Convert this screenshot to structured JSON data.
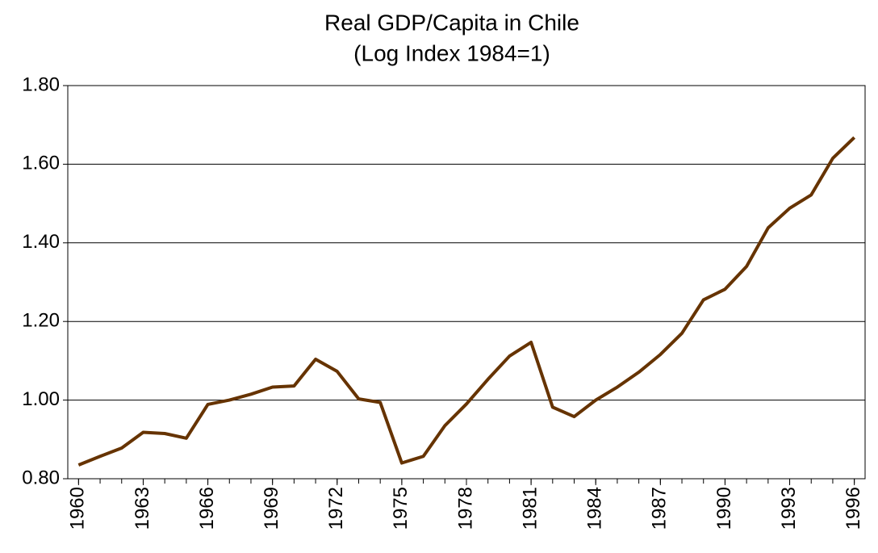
{
  "chart_data": {
    "type": "line",
    "title": "Real GDP/Capita in Chile",
    "subtitle": "(Log Index 1984=1)",
    "x": [
      1960,
      1961,
      1962,
      1963,
      1964,
      1965,
      1966,
      1967,
      1968,
      1969,
      1970,
      1971,
      1972,
      1973,
      1974,
      1975,
      1976,
      1977,
      1978,
      1979,
      1980,
      1981,
      1982,
      1983,
      1984,
      1985,
      1986,
      1987,
      1988,
      1989,
      1990,
      1991,
      1992,
      1993,
      1994,
      1995,
      1996
    ],
    "series": [
      {
        "color": "#663300",
        "values": [
          0.835,
          0.857,
          0.878,
          0.918,
          0.915,
          0.903,
          0.989,
          1.0,
          1.015,
          1.033,
          1.036,
          1.104,
          1.073,
          1.003,
          0.994,
          0.84,
          0.857,
          0.935,
          0.99,
          1.053,
          1.112,
          1.147,
          0.982,
          0.958,
          1.0,
          1.033,
          1.071,
          1.116,
          1.17,
          1.255,
          1.282,
          1.34,
          1.438,
          1.488,
          1.522,
          1.615,
          1.668
        ]
      }
    ],
    "xlim": [
      1959.5,
      1996.5
    ],
    "xticks": [
      1960,
      1963,
      1966,
      1969,
      1972,
      1975,
      1978,
      1981,
      1984,
      1987,
      1990,
      1993,
      1996
    ],
    "ylim": [
      0.8,
      1.8
    ],
    "yticks": [
      {
        "value": 0.8,
        "label": "0.80"
      },
      {
        "value": 1.0,
        "label": "1.00"
      },
      {
        "value": 1.2,
        "label": "1.20"
      },
      {
        "value": 1.4,
        "label": "1.40"
      },
      {
        "value": 1.6,
        "label": "1.60"
      },
      {
        "value": 1.8,
        "label": "1.80"
      }
    ],
    "grid": true
  }
}
